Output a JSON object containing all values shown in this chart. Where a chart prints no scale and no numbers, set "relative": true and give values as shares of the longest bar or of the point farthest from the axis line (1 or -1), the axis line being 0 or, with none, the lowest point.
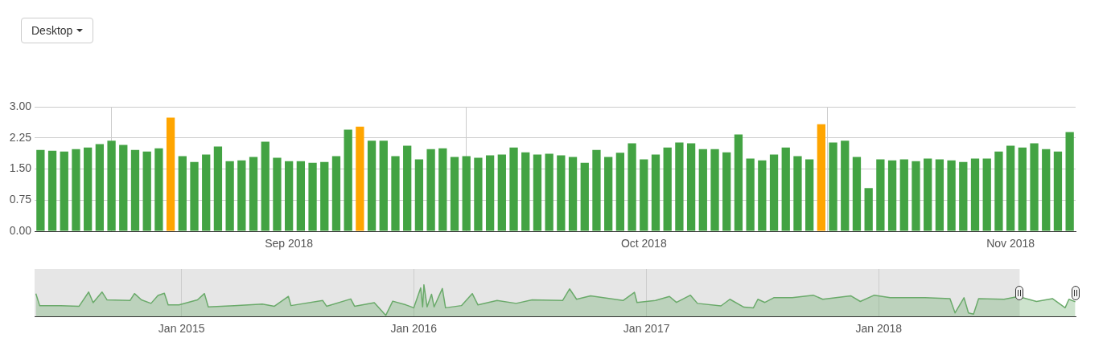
{
  "chart_data": [
    {
      "type": "bar",
      "annotations": [
        "Desktop"
      ],
      "x": [
        "2018-08-11",
        "2018-08-12",
        "2018-08-13",
        "2018-08-14",
        "2018-08-15",
        "2018-08-16",
        "2018-08-17",
        "2018-08-18",
        "2018-08-19",
        "2018-08-20",
        "2018-08-21",
        "2018-08-22",
        "2018-08-23",
        "2018-08-24",
        "2018-08-25",
        "2018-08-26",
        "2018-08-27",
        "2018-08-28",
        "2018-08-29",
        "2018-08-30",
        "2018-08-31",
        "2018-09-01",
        "2018-09-02",
        "2018-09-03",
        "2018-09-04",
        "2018-09-05",
        "2018-09-06",
        "2018-09-07",
        "2018-09-08",
        "2018-09-09",
        "2018-09-10",
        "2018-09-11",
        "2018-09-12",
        "2018-09-13",
        "2018-09-14",
        "2018-09-15",
        "2018-09-16",
        "2018-09-17",
        "2018-09-18",
        "2018-09-19",
        "2018-09-20",
        "2018-09-21",
        "2018-09-22",
        "2018-09-23",
        "2018-09-24",
        "2018-09-25",
        "2018-09-26",
        "2018-09-27",
        "2018-09-28",
        "2018-09-29",
        "2018-09-30",
        "2018-10-01",
        "2018-10-02",
        "2018-10-03",
        "2018-10-04",
        "2018-10-05",
        "2018-10-06",
        "2018-10-07",
        "2018-10-08",
        "2018-10-09",
        "2018-10-10",
        "2018-10-11",
        "2018-10-12",
        "2018-10-13",
        "2018-10-14",
        "2018-10-15",
        "2018-10-16",
        "2018-10-17",
        "2018-10-18",
        "2018-10-19",
        "2018-10-20",
        "2018-10-21",
        "2018-10-22",
        "2018-10-23",
        "2018-10-24",
        "2018-10-25",
        "2018-10-26",
        "2018-10-27",
        "2018-10-28",
        "2018-10-29",
        "2018-10-30",
        "2018-10-31",
        "2018-11-01",
        "2018-11-02",
        "2018-11-03",
        "2018-11-04",
        "2018-11-05",
        "2018-11-06"
      ],
      "values": [
        1.96,
        1.94,
        1.92,
        1.98,
        2.02,
        2.1,
        2.18,
        2.08,
        1.96,
        1.92,
        2.0,
        2.74,
        1.81,
        1.67,
        1.85,
        2.04,
        1.69,
        1.71,
        1.79,
        2.16,
        1.77,
        1.69,
        1.69,
        1.65,
        1.67,
        1.81,
        2.45,
        2.52,
        2.18,
        2.18,
        1.81,
        2.06,
        1.73,
        1.98,
        2.0,
        1.79,
        1.81,
        1.77,
        1.83,
        1.85,
        2.02,
        1.9,
        1.85,
        1.87,
        1.83,
        1.79,
        1.65,
        1.96,
        1.79,
        1.89,
        2.12,
        1.73,
        1.85,
        2.02,
        2.14,
        2.12,
        1.98,
        1.98,
        1.9,
        2.33,
        1.75,
        1.71,
        1.85,
        2.02,
        1.81,
        1.73,
        2.58,
        2.14,
        2.18,
        1.79,
        1.04,
        1.73,
        1.71,
        1.73,
        1.69,
        1.75,
        1.73,
        1.71,
        1.67,
        1.75,
        1.75,
        1.92,
        2.06,
        2.02,
        2.12,
        1.98,
        1.92,
        2.39
      ],
      "colors": [
        "#43a343",
        "#43a343",
        "#43a343",
        "#43a343",
        "#43a343",
        "#43a343",
        "#43a343",
        "#43a343",
        "#43a343",
        "#43a343",
        "#43a343",
        "#ffa500",
        "#43a343",
        "#43a343",
        "#43a343",
        "#43a343",
        "#43a343",
        "#43a343",
        "#43a343",
        "#43a343",
        "#43a343",
        "#43a343",
        "#43a343",
        "#43a343",
        "#43a343",
        "#43a343",
        "#43a343",
        "#ffa500",
        "#43a343",
        "#43a343",
        "#43a343",
        "#43a343",
        "#43a343",
        "#43a343",
        "#43a343",
        "#43a343",
        "#43a343",
        "#43a343",
        "#43a343",
        "#43a343",
        "#43a343",
        "#43a343",
        "#43a343",
        "#43a343",
        "#43a343",
        "#43a343",
        "#43a343",
        "#43a343",
        "#43a343",
        "#43a343",
        "#43a343",
        "#43a343",
        "#43a343",
        "#43a343",
        "#43a343",
        "#43a343",
        "#43a343",
        "#43a343",
        "#43a343",
        "#43a343",
        "#43a343",
        "#43a343",
        "#43a343",
        "#43a343",
        "#43a343",
        "#43a343",
        "#ffa500",
        "#43a343",
        "#43a343",
        "#43a343",
        "#43a343",
        "#43a343",
        "#43a343",
        "#43a343",
        "#43a343",
        "#43a343",
        "#43a343",
        "#43a343",
        "#43a343",
        "#43a343",
        "#43a343",
        "#43a343",
        "#43a343",
        "#43a343",
        "#43a343",
        "#43a343",
        "#43a343",
        "#43a343"
      ],
      "xlim": [
        "2018-08-10T12:00",
        "2018-11-06T12:00"
      ],
      "xticks": [
        {
          "value": "2018-09-01",
          "label": "Sep 2018"
        },
        {
          "value": "2018-10-01",
          "label": "Oct 2018"
        },
        {
          "value": "2018-11-01",
          "label": "Nov 2018"
        }
      ],
      "ylim": [
        0,
        3
      ],
      "yticks": [
        {
          "value": 0,
          "label": "0.00"
        },
        {
          "value": 0.75,
          "label": "0.75"
        },
        {
          "value": 1.5,
          "label": "1.50"
        },
        {
          "value": 2.25,
          "label": "2.25"
        },
        {
          "value": 3,
          "label": "3.00"
        }
      ],
      "grid": true
    },
    {
      "type": "area",
      "relative": true,
      "color": "#6aaa6a",
      "grid": "x",
      "x": [
        "2014-05-17",
        "2014-05-23",
        "2014-06-25",
        "2014-07-24",
        "2014-08-08",
        "2014-08-15",
        "2014-08-29",
        "2014-09-06",
        "2014-10-12",
        "2014-10-19",
        "2014-10-30",
        "2014-11-14",
        "2014-11-25",
        "2014-12-05",
        "2014-12-11",
        "2014-12-28",
        "2015-01-26",
        "2015-02-06",
        "2015-02-12",
        "2015-03-25",
        "2015-05-08",
        "2015-05-27",
        "2015-06-18",
        "2015-06-22",
        "2015-08-11",
        "2015-08-17",
        "2015-09-24",
        "2015-09-30",
        "2015-10-31",
        "2015-11-18",
        "2015-11-29",
        "2015-12-20",
        "2016-01-01",
        "2016-01-12",
        "2016-01-15",
        "2016-01-17",
        "2016-01-22",
        "2016-01-29",
        "2016-02-02",
        "2016-02-15",
        "2016-02-20",
        "2016-03-16",
        "2016-04-02",
        "2016-04-11",
        "2016-05-11",
        "2016-06-10",
        "2016-07-05",
        "2016-08-22",
        "2016-09-02",
        "2016-09-13",
        "2016-10-05",
        "2016-11-25",
        "2016-12-13",
        "2016-12-17",
        "2017-01-15",
        "2017-02-06",
        "2017-02-17",
        "2017-03-11",
        "2017-03-22",
        "2017-04-28",
        "2017-05-12",
        "2017-06-03",
        "2017-06-18",
        "2017-06-25",
        "2017-07-06",
        "2017-07-20",
        "2017-08-18",
        "2017-09-20",
        "2017-10-05",
        "2017-11-18",
        "2017-12-03",
        "2017-12-25",
        "2018-01-19",
        "2018-03-15",
        "2018-04-23",
        "2018-05-01",
        "2018-05-15",
        "2018-05-22",
        "2018-05-30",
        "2018-06-07",
        "2018-07-17",
        "2018-08-04",
        "2018-08-15",
        "2018-09-06",
        "2018-10-01",
        "2018-10-21",
        "2018-10-27",
        "2018-11-06"
      ],
      "values": [
        0.72,
        0.34,
        0.34,
        0.32,
        0.77,
        0.43,
        0.77,
        0.52,
        0.5,
        0.72,
        0.52,
        0.41,
        0.66,
        0.73,
        0.36,
        0.36,
        0.52,
        0.72,
        0.3,
        0.34,
        0.39,
        0.32,
        0.63,
        0.34,
        0.5,
        0.32,
        0.55,
        0.32,
        0.43,
        0.03,
        0.48,
        0.36,
        0.27,
        0.9,
        0.3,
        1.0,
        0.3,
        0.7,
        0.3,
        0.88,
        0.27,
        0.34,
        0.72,
        0.36,
        0.5,
        0.41,
        0.52,
        0.5,
        0.87,
        0.54,
        0.65,
        0.5,
        0.76,
        0.44,
        0.5,
        0.63,
        0.44,
        0.67,
        0.41,
        0.33,
        0.54,
        0.29,
        0.27,
        0.54,
        0.44,
        0.59,
        0.59,
        0.67,
        0.54,
        0.65,
        0.47,
        0.67,
        0.59,
        0.59,
        0.56,
        0.11,
        0.59,
        0.11,
        0.07,
        0.56,
        0.54,
        0.61,
        0.59,
        0.47,
        0.56,
        0.27,
        0.54,
        0.46
      ],
      "xlim": [
        "2014-05-15",
        "2018-11-06T12:00"
      ],
      "xticks": [
        {
          "value": "2015-01-01",
          "label": "Jan 2015"
        },
        {
          "value": "2016-01-01",
          "label": "Jan 2016"
        },
        {
          "value": "2017-01-01",
          "label": "Jan 2017"
        },
        {
          "value": "2018-01-01",
          "label": "Jan 2018"
        }
      ],
      "bands": [
        {
          "axis": "x",
          "from": "2018-08-11",
          "to": "2018-11-06",
          "color": "#ffffff"
        }
      ]
    }
  ]
}
